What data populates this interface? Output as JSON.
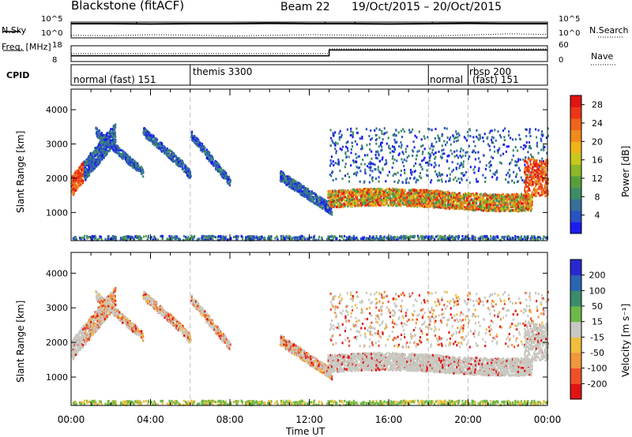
{
  "chart_data": [
    {
      "type": "line",
      "title": "Blackstone (fitACF)",
      "beam": "Beam 22",
      "date_range": "19/Oct/2015 – 20/Oct/2015",
      "left_label": "N.Sky",
      "right_label": "N.Search",
      "left_ticks": [
        "10^5",
        "10^0"
      ],
      "right_ticks": [
        "10^5",
        "10^0"
      ],
      "series": [
        {
          "values_log10": [
            4.5,
            4.5,
            4.4,
            4.5,
            4.5,
            4.6,
            4.5,
            4.5,
            4.4,
            4.5,
            4.6,
            4.5,
            4.5
          ]
        },
        {
          "values_log10": [
            0.8,
            0.7,
            1.0,
            0.9,
            0.6,
            0.8,
            1.0,
            0.9,
            0.7,
            0.6,
            0.9,
            1.3,
            1.1
          ]
        }
      ]
    },
    {
      "type": "line",
      "left_label": "Freq. [MHz]",
      "right_label": "Nave",
      "left_ticks": [
        "18",
        "8"
      ],
      "right_ticks": [
        "60",
        "0"
      ],
      "freq_steps": [
        [
          0,
          13.0,
          11.6
        ],
        [
          13.0,
          24.0,
          15.3
        ]
      ],
      "nave_steps": [
        [
          0,
          13.0,
          30
        ],
        [
          13.0,
          24.0,
          48
        ]
      ]
    },
    {
      "type": "table",
      "label": "CPID",
      "segments": [
        {
          "start_hr": 0.0,
          "text": "normal (fast) 151"
        },
        {
          "start_hr": 6.0,
          "text": "themis 3300"
        },
        {
          "start_hr": 18.0,
          "text": "normal"
        },
        {
          "start_hr": 20.0,
          "text": "rbsp 200"
        },
        {
          "start_hr": 20.0,
          "text": "(fast) 151"
        }
      ]
    },
    {
      "type": "heatmap",
      "ylabel": "Slant Range [km]",
      "yticks": [
        1000,
        2000,
        3000,
        4000
      ],
      "ylim": [
        180,
        4600
      ],
      "colorbar": {
        "label": "Power [dB]",
        "ticks": [
          4,
          8,
          12,
          16,
          20,
          24,
          28
        ],
        "colors": [
          "#1c1cf0",
          "#2a52c4",
          "#36709a",
          "#3e8c66",
          "#56a03c",
          "#8cb82a",
          "#c8c81c",
          "#f0b41a",
          "#f08c1c",
          "#f0641a",
          "#ec3616",
          "#e01414"
        ]
      }
    },
    {
      "type": "heatmap",
      "ylabel": "Slant Range [km]",
      "yticks": [
        1000,
        2000,
        3000,
        4000
      ],
      "ylim": [
        180,
        4600
      ],
      "xlabel": "Time UT",
      "xticks": [
        "00:00",
        "04:00",
        "08:00",
        "12:00",
        "16:00",
        "20:00",
        "00:00"
      ],
      "xlim_hours": [
        0,
        24
      ],
      "colorbar": {
        "label": "Velocity [m s⁻¹]",
        "ticks": [
          200,
          100,
          50,
          15,
          -15,
          -50,
          -100,
          -200
        ],
        "colors": [
          "#2828d0",
          "#2c64b4",
          "#3a8c6c",
          "#6cb848",
          "#c8c8c0",
          "#f0be3c",
          "#f0963c",
          "#f05028",
          "#e01414"
        ]
      }
    }
  ],
  "colors": {
    "axis": "#000000",
    "dashed_marker": "#c0c0c0"
  }
}
